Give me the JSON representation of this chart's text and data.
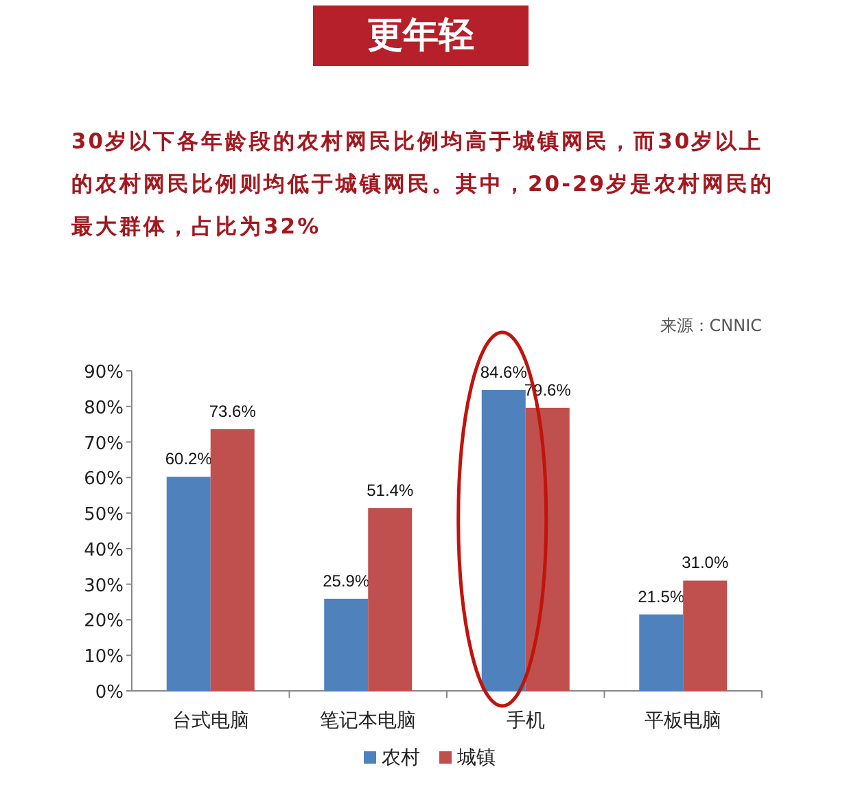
{
  "chart_data": {
    "type": "bar",
    "title": "更年轻",
    "subtitle": "30岁以下各年龄段的农村网民比例均高于城镇网民，而30岁以上的农村网民比例则均低于城镇网民。其中，20-29岁是农村网民的最大群体，占比为32%",
    "annotations": [
      "来源：CNNIC"
    ],
    "categories": [
      "台式电脑",
      "笔记本电脑",
      "手机",
      "平板电脑"
    ],
    "series": [
      {
        "name": "农村",
        "color": "#4f81bd",
        "values": [
          60.2,
          25.9,
          84.6,
          21.5
        ]
      },
      {
        "name": "城镇",
        "color": "#c0504d",
        "values": [
          73.6,
          51.4,
          79.6,
          31.0
        ]
      }
    ],
    "ylim": [
      0,
      90
    ],
    "yticks": [
      {
        "value": 0,
        "label": "0%"
      },
      {
        "value": 10,
        "label": "10%"
      },
      {
        "value": 20,
        "label": "20%"
      },
      {
        "value": 30,
        "label": "30%"
      },
      {
        "value": 40,
        "label": "40%"
      },
      {
        "value": 50,
        "label": "50%"
      },
      {
        "value": 60,
        "label": "60%"
      },
      {
        "value": 70,
        "label": "70%"
      },
      {
        "value": 80,
        "label": "80%"
      },
      {
        "value": 90,
        "label": "90%"
      }
    ],
    "value_labels": [
      [
        "60.2%",
        "25.9%",
        "84.6%",
        "21.5%"
      ],
      [
        "73.6%",
        "51.4%",
        "79.6%",
        "31.0%"
      ]
    ],
    "legend": "bottom",
    "grid": false
  }
}
